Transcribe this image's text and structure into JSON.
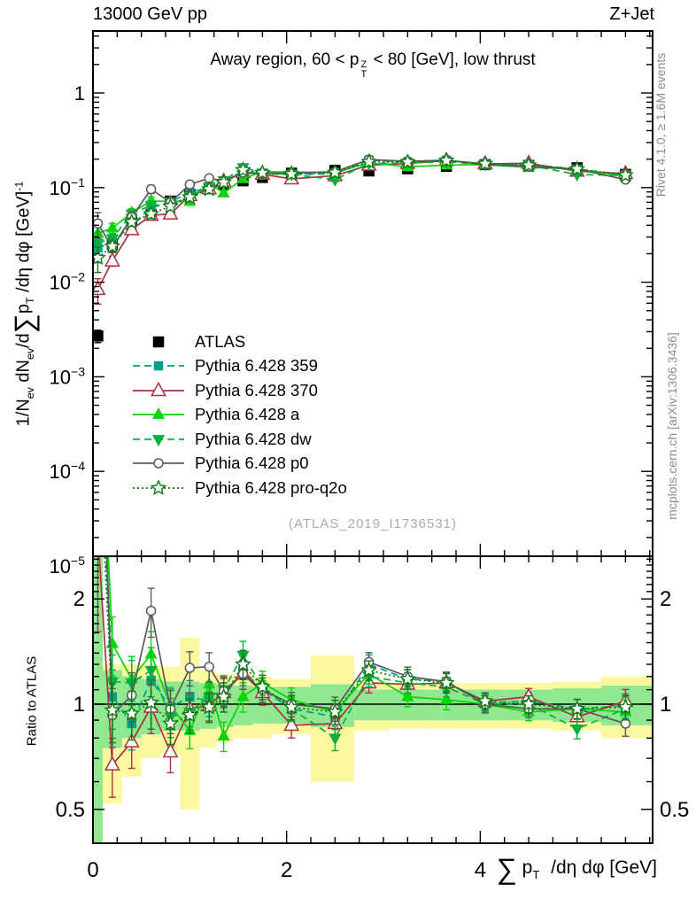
{
  "header": {
    "left": "13000 GeV pp",
    "right": "Z+Jet"
  },
  "title": {
    "pre": "Away region, 60 < p",
    "stack_top": "Z",
    "stack_bottom": "T",
    "post": " < 80 [GeV], low thrust"
  },
  "watermark": "(ATLAS_2019_I1736531)",
  "side_notes": {
    "top": "Rivet 4.1.0, ≥ 1.6M events",
    "bottom": "mcplots.cern.ch [arXiv:1306.3436]"
  },
  "axes": {
    "x_title_parts": {
      "sigma": "∑",
      "p": "p",
      "sub": "T",
      "rest": " /dη dφ [GeV]"
    },
    "y_title_parts": [
      {
        "t": "1/N"
      },
      {
        "t": "ev",
        "s": "sub"
      },
      {
        "t": " dN"
      },
      {
        "t": "ev",
        "s": "sub"
      },
      {
        "t": "/d"
      },
      {
        "t": "∑",
        "s": "big"
      },
      {
        "t": "p"
      },
      {
        "t": "T",
        "s": "sub"
      },
      {
        "t": " /dη dφ  [GeV]"
      },
      {
        "t": "-1",
        "s": "sup"
      }
    ],
    "ratio_y_title": "Ratio to ATLAS",
    "x_major_ticks": [
      0,
      2,
      4
    ],
    "x_minor_step": 0.25,
    "x_range": [
      0,
      5.78
    ],
    "main_y_decades": [
      0,
      -1,
      -2,
      -3,
      -4,
      -5
    ],
    "ratio_y_ticks": [
      {
        "v": 2,
        "label": "2"
      },
      {
        "v": 1,
        "label": "1"
      },
      {
        "v": 0.5,
        "label": "0.5"
      }
    ],
    "ratio_range": [
      0.4,
      2.65
    ]
  },
  "chart_data": {
    "type": "line",
    "title": "Away region, 60 < pT(Z) < 80 [GeV], low thrust",
    "xlabel": "sum pT /deta dphi [GeV]",
    "ylabel": "1/N_ev dN_ev/d sum pT/deta dphi [GeV]^-1",
    "x_range": [
      0,
      5.78
    ],
    "main_ylog_range": [
      1.26e-05,
      4.5
    ],
    "ratio_ylog_range": [
      0.4,
      2.65
    ],
    "x": [
      0.05,
      0.2,
      0.4,
      0.6,
      0.8,
      1.0,
      1.2,
      1.35,
      1.55,
      1.75,
      2.05,
      2.5,
      2.85,
      3.25,
      3.65,
      4.05,
      4.5,
      5.0,
      5.5
    ],
    "bin_edges": [
      0,
      0.1,
      0.3,
      0.5,
      0.7,
      0.9,
      1.1,
      1.275,
      1.45,
      1.65,
      1.85,
      2.25,
      2.7,
      3.05,
      3.45,
      3.85,
      4.25,
      4.75,
      5.25,
      5.78
    ],
    "atlas": {
      "name": "ATLAS",
      "color": "#000000",
      "marker": "square",
      "filled": true,
      "line": "none",
      "values": [
        0.0027,
        0.025,
        0.046,
        0.052,
        0.072,
        0.085,
        0.098,
        0.108,
        0.118,
        0.128,
        0.142,
        0.152,
        0.15,
        0.158,
        0.168,
        0.175,
        0.172,
        0.162,
        0.138
      ],
      "err_frac": [
        0.15,
        0.1,
        0.08,
        0.07,
        0.06,
        0.05,
        0.05,
        0.04,
        0.04,
        0.04,
        0.035,
        0.035,
        0.03,
        0.03,
        0.03,
        0.03,
        0.03,
        0.035,
        0.04
      ]
    },
    "models": [
      {
        "name": "Pythia 6.428 359",
        "color": "#009E8E",
        "line": "dashed",
        "marker": "square",
        "filled": true,
        "ratio": [
          8.5,
          1.05,
          0.88,
          1.17,
          0.98,
          1.05,
          1.02,
          1.05,
          1.25,
          1.1,
          0.97,
          0.92,
          1.3,
          1.18,
          1.16,
          1.01,
          1.02,
          0.97,
          0.99
        ]
      },
      {
        "name": "Pythia 6.428 370",
        "color": "#A93340",
        "line": "solid",
        "marker": "triangle-up",
        "filled": false,
        "ratio": [
          3.1,
          0.67,
          0.78,
          0.98,
          0.73,
          0.97,
          0.99,
          1.08,
          1.22,
          1.08,
          0.87,
          0.88,
          1.15,
          1.14,
          1.15,
          1.02,
          1.05,
          0.92,
          1.02
        ]
      },
      {
        "name": "Pythia 6.428 a",
        "color": "#06D506",
        "line": "solid",
        "marker": "triangle-up",
        "filled": true,
        "ratio": [
          12.2,
          1.49,
          1.18,
          1.39,
          0.99,
          0.84,
          1.14,
          0.81,
          1.05,
          1.15,
          1.03,
          0.95,
          1.22,
          1.05,
          1.03,
          1.0,
          0.95,
          0.97,
          0.95
        ]
      },
      {
        "name": "Pythia 6.428 dw",
        "color": "#0BAE3E",
        "line": "dashed",
        "marker": "triangle-down",
        "filled": true,
        "ratio": [
          9.6,
          1.16,
          1.15,
          1.25,
          0.92,
          0.95,
          1.05,
          1.1,
          1.38,
          1.12,
          0.97,
          0.8,
          1.2,
          1.15,
          1.12,
          1.0,
          1.0,
          0.85,
          0.97
        ]
      },
      {
        "name": "Pythia 6.428 p0",
        "color": "#595959",
        "line": "solid",
        "marker": "circle",
        "filled": false,
        "ratio": [
          15.5,
          0.93,
          1.06,
          1.85,
          0.97,
          1.27,
          1.28,
          1.09,
          1.22,
          1.1,
          1.0,
          0.97,
          1.32,
          1.2,
          1.16,
          1.0,
          0.97,
          0.97,
          0.88
        ]
      },
      {
        "name": "Pythia 6.428 pro-q2o",
        "color": "#0F7A12",
        "line": "dotted",
        "marker": "star",
        "filled": false,
        "ratio": [
          6.7,
          0.96,
          0.94,
          1.01,
          0.88,
          0.93,
          0.98,
          1.05,
          1.3,
          1.12,
          0.98,
          0.95,
          1.25,
          1.18,
          1.15,
          1.02,
          1.0,
          0.97,
          0.98
        ]
      }
    ],
    "model_err_frac": [
      0.3,
      0.12,
      0.1,
      0.1,
      0.08,
      0.07,
      0.06,
      0.06,
      0.06,
      0.05,
      0.05,
      0.05,
      0.04,
      0.04,
      0.04,
      0.035,
      0.035,
      0.04,
      0.05
    ],
    "bands": {
      "yellow_color": "#FBF8A0",
      "green_color": "#8FE78F",
      "yellow": [
        [
          0.4,
          2.65
        ],
        [
          0.52,
          1.3
        ],
        [
          0.62,
          1.3
        ],
        [
          0.7,
          1.3
        ],
        [
          0.72,
          1.28
        ],
        [
          0.5,
          1.55
        ],
        [
          0.75,
          1.25
        ],
        [
          0.78,
          1.22
        ],
        [
          0.8,
          1.22
        ],
        [
          0.8,
          1.2
        ],
        [
          0.82,
          1.18
        ],
        [
          0.6,
          1.38
        ],
        [
          0.84,
          1.16
        ],
        [
          0.85,
          1.15
        ],
        [
          0.85,
          1.15
        ],
        [
          0.85,
          1.15
        ],
        [
          0.85,
          1.15
        ],
        [
          0.84,
          1.16
        ],
        [
          0.8,
          1.2
        ]
      ],
      "green": [
        [
          0.4,
          2.65
        ],
        [
          0.75,
          1.25
        ],
        [
          0.8,
          1.2
        ],
        [
          0.82,
          1.18
        ],
        [
          0.84,
          1.16
        ],
        [
          0.84,
          1.16
        ],
        [
          0.85,
          1.15
        ],
        [
          0.86,
          1.14
        ],
        [
          0.87,
          1.13
        ],
        [
          0.88,
          1.12
        ],
        [
          0.88,
          1.12
        ],
        [
          0.86,
          1.14
        ],
        [
          0.9,
          1.1
        ],
        [
          0.9,
          1.1
        ],
        [
          0.9,
          1.1
        ],
        [
          0.9,
          1.1
        ],
        [
          0.9,
          1.1
        ],
        [
          0.89,
          1.11
        ],
        [
          0.87,
          1.13
        ]
      ]
    }
  }
}
